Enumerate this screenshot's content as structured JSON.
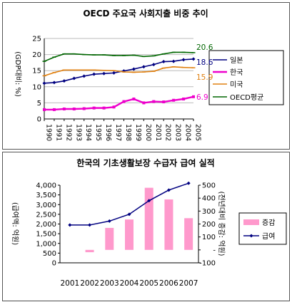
{
  "chart_data": [
    {
      "type": "line",
      "title": "OECD 주요국 사회지출 비중 추이",
      "ylabel": "(GDP대비: %)",
      "ylim": [
        0,
        25
      ],
      "yticks": [
        "0",
        "5",
        "10",
        "15",
        "20",
        "25"
      ],
      "categories": [
        "1990",
        "1991",
        "1992",
        "1993",
        "1994",
        "1995",
        "1996",
        "1997",
        "1998",
        "1999",
        "2000",
        "2001",
        "2002",
        "2003",
        "2004",
        "2005"
      ],
      "series": [
        {
          "name": "일본",
          "color": "#000080",
          "values": [
            11.1,
            11.3,
            11.8,
            12.6,
            13.3,
            13.9,
            14.1,
            14.3,
            14.9,
            15.5,
            16.2,
            16.9,
            17.8,
            17.9,
            18.4,
            18.6
          ]
        },
        {
          "name": "한국",
          "color": "#ee00cc",
          "values": [
            2.9,
            2.9,
            3.1,
            3.1,
            3.2,
            3.4,
            3.4,
            3.7,
            5.4,
            6.2,
            5.0,
            5.4,
            5.3,
            5.8,
            6.2,
            6.9
          ]
        },
        {
          "name": "미국",
          "color": "#e08010",
          "values": [
            13.4,
            14.4,
            15.2,
            15.2,
            15.2,
            15.2,
            15.1,
            15.0,
            14.6,
            14.5,
            14.6,
            14.8,
            15.8,
            16.2,
            16.0,
            15.9
          ]
        },
        {
          "name": "OECD평균",
          "color": "#006600",
          "values": [
            17.9,
            19.2,
            20.2,
            20.2,
            20.0,
            19.9,
            19.9,
            19.7,
            19.7,
            19.8,
            19.4,
            19.6,
            20.2,
            20.7,
            20.7,
            20.6
          ]
        }
      ],
      "end_labels": [
        "20.6",
        "18.6",
        "15.9",
        "6.9"
      ],
      "end_label_colors": [
        "#006600",
        "#000080",
        "#e08010",
        "#ee00cc"
      ],
      "legend_position": "right",
      "grid": true
    },
    {
      "type": "bar",
      "title": "한국의 기초생활보장 수급자 급여 실적",
      "ylabel": "(급여액: 억원)",
      "y2label": "(전년대비 증감: 억원)",
      "ylim": [
        0,
        4000
      ],
      "yticks": [
        "0",
        "500",
        "1,000",
        "1,500",
        "2,000",
        "2,500",
        "3,000",
        "3,500",
        "4,000"
      ],
      "y2lim": [
        -100,
        500
      ],
      "y2ticks": [
        "-100",
        "-",
        "100",
        "200",
        "300",
        "400",
        "500"
      ],
      "categories": [
        "2001",
        "2002",
        "2003",
        "2004",
        "2005",
        "2006",
        "2007"
      ],
      "series": [
        {
          "name": "증감",
          "color": "#ff99cc",
          "axis": "right",
          "values": [
            0,
            -18,
            170,
            235,
            480,
            390,
            245
          ]
        },
        {
          "name": "급여",
          "color": "#000080",
          "axis": "left",
          "values": [
            1950,
            1950,
            2150,
            2500,
            3200,
            3750,
            4100
          ]
        }
      ],
      "legend_position": "right",
      "grid": false
    }
  ]
}
